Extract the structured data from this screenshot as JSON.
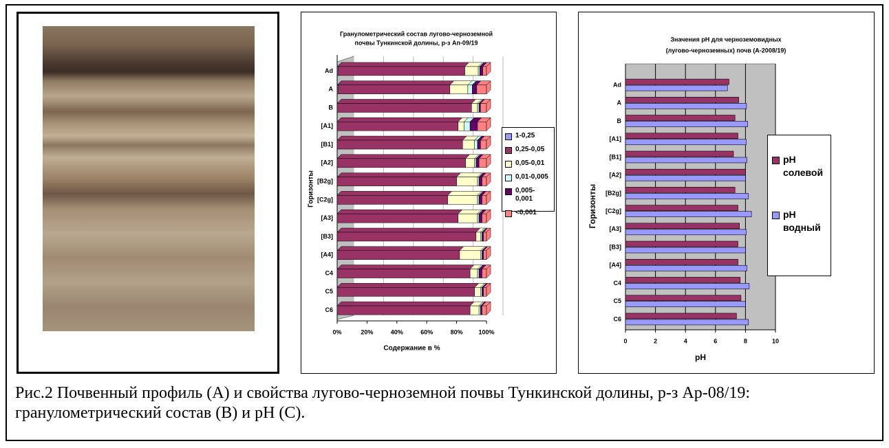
{
  "chart_data": [
    {
      "type": "bar",
      "orientation": "horizontal",
      "stacked": true,
      "title": [
        "Гранулометрический состав лугово-черноземной",
        "почвы Тункинской долины, р-з Ап-09/19"
      ],
      "x_label": "Содержание в %",
      "y_label": "Горизонты",
      "categories": [
        "Ad",
        "A",
        "B",
        "[A1]",
        "[B1]",
        "[A2]",
        "[B2g]",
        "[C2g]",
        "[A3]",
        "[B3]",
        "[A4]",
        "C4",
        "C5",
        "C6"
      ],
      "series": [
        {
          "name": "1-0,25",
          "color": "#9999ff",
          "values": [
            0.5,
            0.5,
            0,
            0,
            0,
            0,
            0,
            0,
            0,
            0,
            0,
            0,
            0,
            0
          ]
        },
        {
          "name": "0,25-0,05",
          "color": "#993366",
          "values": [
            85,
            75,
            90,
            81,
            84,
            86,
            80,
            74,
            81,
            93,
            82,
            89,
            92,
            89
          ]
        },
        {
          "name": "0,05-0,01",
          "color": "#ffffcc",
          "values": [
            9,
            12,
            4,
            4,
            8,
            6,
            14,
            20,
            13,
            3,
            14,
            5,
            4,
            6
          ]
        },
        {
          "name": "0,01-0,005",
          "color": "#ccffff",
          "values": [
            1,
            3,
            1,
            4,
            2,
            1,
            1,
            1,
            1,
            1,
            1,
            1,
            1,
            1
          ]
        },
        {
          "name": "0,005-0,001",
          "color": "#660066",
          "values": [
            2,
            3,
            1,
            5,
            2,
            2,
            2,
            2,
            2,
            1,
            1,
            2,
            1,
            1
          ]
        },
        {
          "name": "<0,001",
          "color": "#ff8080",
          "values": [
            2.5,
            6.5,
            4,
            6,
            4,
            5,
            3,
            3,
            3,
            2,
            2,
            3,
            2,
            3
          ]
        }
      ],
      "xlim": [
        0,
        100
      ],
      "xticks": [
        {
          "value": 0,
          "label": "0%"
        },
        {
          "value": 20,
          "label": "20%"
        },
        {
          "value": 40,
          "label": "40%"
        },
        {
          "value": 60,
          "label": "60%"
        },
        {
          "value": 80,
          "label": "80%"
        },
        {
          "value": 100,
          "label": "100%"
        }
      ],
      "grid": true,
      "legend": "right"
    },
    {
      "type": "bar",
      "orientation": "horizontal",
      "stacked": false,
      "title": [
        "Значения pH для черноземовидных",
        "(лугово-черноземных) почв (А-2008/19)"
      ],
      "x_label": "pH",
      "y_label": "Горизонты",
      "categories": [
        "Ad",
        "A",
        "B",
        "[A1]",
        "[B1]",
        "[A2]",
        "[B2g]",
        "[C2g]",
        "[A3]",
        "[B3]",
        "[A4]",
        "C4",
        "C5",
        "C6"
      ],
      "series": [
        {
          "name": "pH солевой",
          "color": "#993366",
          "values": [
            6.9,
            7.55,
            7.3,
            7.5,
            7.2,
            8.0,
            7.3,
            7.5,
            7.6,
            7.5,
            7.5,
            7.65,
            7.7,
            7.4
          ]
        },
        {
          "name": "pH водный",
          "color": "#9999ff",
          "values": [
            6.8,
            8.07,
            8.15,
            8.05,
            8.1,
            8.0,
            8.2,
            8.4,
            8.05,
            8.0,
            8.1,
            8.25,
            8.0,
            8.2
          ]
        }
      ],
      "xlim": [
        0,
        10
      ],
      "xticks": [
        0,
        2,
        4,
        6,
        8,
        10
      ],
      "grid": true,
      "legend": "right"
    }
  ],
  "caption": "Рис.2 Почвенный профиль (А)  и свойства  лугово-черноземной почвы Тункинской долины, р-з Ар-08/19: гранулометрический состав (В) и рН (С)."
}
